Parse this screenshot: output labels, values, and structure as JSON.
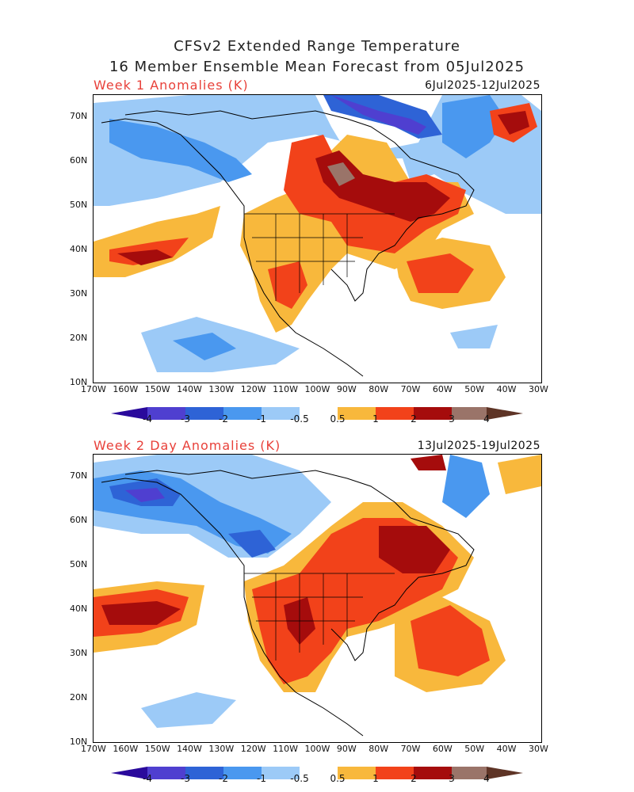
{
  "header": {
    "title_line1": "CFSv2 Extended Range Temperature",
    "title_line2": "16 Member Ensemble Mean Forecast from 05Jul2025"
  },
  "panels": [
    {
      "label": "Week 1 Anomalies (K)",
      "dates": "6Jul2025-12Jul2025"
    },
    {
      "label": "Week 2 Day Anomalies (K)",
      "dates": "13Jul2025-19Jul2025"
    }
  ],
  "axes": {
    "lat_labels": [
      "70N",
      "60N",
      "50N",
      "40N",
      "30N",
      "20N",
      "10N"
    ],
    "lon_labels": [
      "170W",
      "160W",
      "150W",
      "140W",
      "130W",
      "120W",
      "110W",
      "100W",
      "90W",
      "80W",
      "70W",
      "60W",
      "50W",
      "40W",
      "30W"
    ]
  },
  "colorbar": {
    "labels": [
      "-4",
      "-3",
      "-2",
      "-1",
      "-0.5",
      "0.5",
      "1",
      "2",
      "3",
      "4"
    ],
    "colors": [
      "#2a0a9c",
      "#4f3fd0",
      "#2e63d6",
      "#4a98ef",
      "#9ccaf7",
      "#ffffff",
      "#f8b83c",
      "#f2421a",
      "#a50c0c",
      "#9a7469",
      "#5e3426"
    ]
  }
}
